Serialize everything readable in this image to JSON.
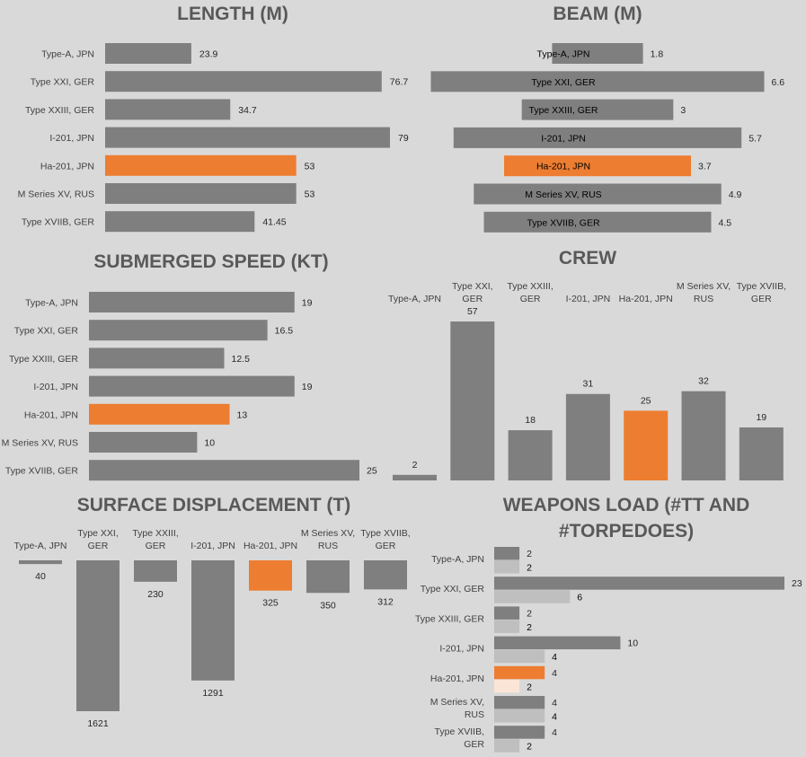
{
  "colors": {
    "background": "#d9d9d9",
    "bar": "#7f7f7f",
    "highlight": "#ed7d31",
    "light_bar": "#bfbfbf",
    "light_highlight": "#fbe5d6"
  },
  "chart_data": [
    {
      "id": "length",
      "type": "bar",
      "orientation": "horizontal",
      "title": "LENGTH (M)",
      "categories": [
        "Type-A, JPN",
        "Type XXI, GER",
        "Type XXIII, GER",
        "I-201, JPN",
        "Ha-201, JPN",
        "M Series XV, RUS",
        "Type  XVIIB, GER"
      ],
      "values": [
        23.9,
        76.7,
        34.7,
        79,
        53,
        53,
        41.45
      ],
      "value_labels": [
        "23.9",
        "76.7",
        "34.7",
        "79",
        "53",
        "53",
        "41.45"
      ],
      "highlight_index": 4
    },
    {
      "id": "beam",
      "type": "bar",
      "orientation": "horizontal",
      "title": "BEAM (M)",
      "categories": [
        "Type-A, JPN",
        "Type XXI, GER",
        "Type XXIII, GER",
        "I-201, JPN",
        "Ha-201, JPN",
        "M Series XV, RUS",
        "Type  XVIIB, GER"
      ],
      "values": [
        1.8,
        6.6,
        3,
        5.7,
        3.7,
        4.9,
        4.5
      ],
      "value_labels": [
        "1.8",
        "6.6",
        "3",
        "5.7",
        "3.7",
        "4.9",
        "4.5"
      ],
      "highlight_index": 4,
      "layout": "centered"
    },
    {
      "id": "speed",
      "type": "bar",
      "orientation": "horizontal",
      "title": "SUBMERGED SPEED (KT)",
      "categories": [
        "Type-A, JPN",
        "Type XXI, GER",
        "Type XXIII, GER",
        "I-201, JPN",
        "Ha-201, JPN",
        "M Series XV, RUS",
        "Type  XVIIB, GER"
      ],
      "values": [
        19,
        16.5,
        12.5,
        19,
        13,
        10,
        25
      ],
      "value_labels": [
        "19",
        "16.5",
        "12.5",
        "19",
        "13",
        "10",
        "25"
      ],
      "highlight_index": 4
    },
    {
      "id": "crew",
      "type": "bar",
      "orientation": "vertical",
      "title": "CREW",
      "categories": [
        [
          "Type-A, JPN"
        ],
        [
          "Type XXI,",
          "GER"
        ],
        [
          "Type XXIII,",
          "GER"
        ],
        [
          "I-201, JPN"
        ],
        [
          "Ha-201, JPN"
        ],
        [
          "M Series XV,",
          "RUS"
        ],
        [
          "Type  XVIIB,",
          "GER"
        ]
      ],
      "values": [
        2,
        57,
        18,
        31,
        25,
        32,
        19
      ],
      "value_labels": [
        "2",
        "57",
        "18",
        "31",
        "25",
        "32",
        "19"
      ],
      "highlight_index": 4
    },
    {
      "id": "displacement",
      "type": "bar",
      "orientation": "vertical-down",
      "title": "SURFACE DISPLACEMENT (T)",
      "categories": [
        [
          "Type-A, JPN"
        ],
        [
          "Type XXI,",
          "GER"
        ],
        [
          "Type XXIII,",
          "GER"
        ],
        [
          "I-201, JPN"
        ],
        [
          "Ha-201, JPN"
        ],
        [
          "M Series XV,",
          "RUS"
        ],
        [
          "Type  XVIIB,",
          "GER"
        ]
      ],
      "values": [
        40,
        1621,
        230,
        1291,
        325,
        350,
        312
      ],
      "value_labels": [
        "40",
        "1621",
        "230",
        "1291",
        "325",
        "350",
        "312"
      ],
      "highlight_index": 4
    },
    {
      "id": "weapons",
      "type": "bar",
      "orientation": "horizontal-grouped",
      "title_lines": [
        "WEAPONS LOAD (#TT AND",
        "#TORPEDOES)"
      ],
      "categories": [
        [
          "Type-A, JPN"
        ],
        [
          "Type XXI, GER"
        ],
        [
          "Type XXIII, GER"
        ],
        [
          "I-201, JPN"
        ],
        [
          "Ha-201, JPN"
        ],
        [
          "M Series XV,",
          "RUS"
        ],
        [
          "Type  XVIIB,",
          "GER"
        ]
      ],
      "series": [
        {
          "values": [
            2,
            23,
            2,
            10,
            4,
            4,
            4
          ],
          "value_labels": [
            "2",
            "23",
            "2",
            "10",
            "4",
            "4",
            "4"
          ]
        },
        {
          "values": [
            2,
            6,
            2,
            4,
            2,
            4,
            2
          ],
          "value_labels": [
            "2",
            "6",
            "2",
            "4",
            "2",
            "4",
            "2"
          ]
        }
      ],
      "highlight_index": 4
    }
  ]
}
